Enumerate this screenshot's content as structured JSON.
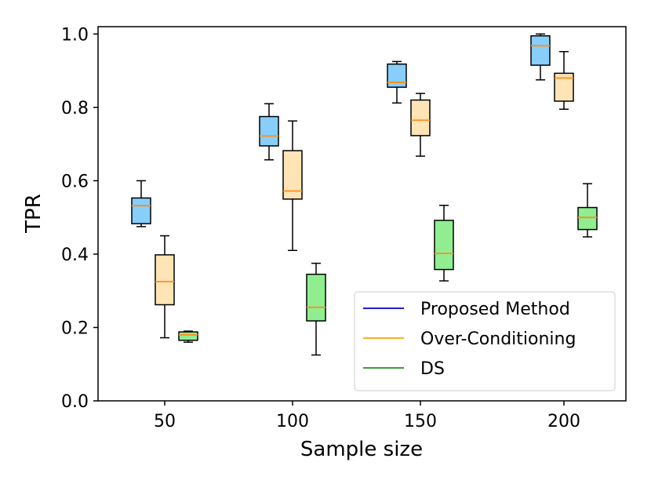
{
  "chart_data": {
    "type": "box",
    "xlabel": "Sample size",
    "ylabel": "TPR",
    "categories": [
      "50",
      "100",
      "150",
      "200"
    ],
    "ylim": [
      0.0,
      1.02
    ],
    "yticks": [
      "0.0",
      "0.2",
      "0.4",
      "0.6",
      "0.8",
      "1.0"
    ],
    "grid": false,
    "legend_position": "lower-right",
    "series": [
      {
        "name": "Proposed Method",
        "fill": "#87cefa",
        "line_color": "#0000cd",
        "boxes": [
          {
            "whislo": 0.475,
            "q1": 0.483,
            "med": 0.532,
            "q3": 0.553,
            "whishi": 0.6
          },
          {
            "whislo": 0.657,
            "q1": 0.695,
            "med": 0.722,
            "q3": 0.775,
            "whishi": 0.81
          },
          {
            "whislo": 0.812,
            "q1": 0.855,
            "med": 0.868,
            "q3": 0.918,
            "whishi": 0.925
          },
          {
            "whislo": 0.875,
            "q1": 0.915,
            "med": 0.968,
            "q3": 0.995,
            "whishi": 1.0
          }
        ]
      },
      {
        "name": "Over-Conditioning",
        "fill": "#ffe4b5",
        "line_color": "#ffa500",
        "boxes": [
          {
            "whislo": 0.172,
            "q1": 0.262,
            "med": 0.325,
            "q3": 0.398,
            "whishi": 0.45
          },
          {
            "whislo": 0.41,
            "q1": 0.55,
            "med": 0.572,
            "q3": 0.682,
            "whishi": 0.763
          },
          {
            "whislo": 0.667,
            "q1": 0.723,
            "med": 0.765,
            "q3": 0.82,
            "whishi": 0.838
          },
          {
            "whislo": 0.795,
            "q1": 0.817,
            "med": 0.88,
            "q3": 0.893,
            "whishi": 0.952
          }
        ]
      },
      {
        "name": "DS",
        "fill": "#90ee90",
        "line_color": "#228b22",
        "boxes": [
          {
            "whislo": 0.16,
            "q1": 0.165,
            "med": 0.18,
            "q3": 0.188,
            "whishi": 0.19
          },
          {
            "whislo": 0.125,
            "q1": 0.218,
            "med": 0.255,
            "q3": 0.345,
            "whishi": 0.375
          },
          {
            "whislo": 0.327,
            "q1": 0.358,
            "med": 0.402,
            "q3": 0.492,
            "whishi": 0.533
          },
          {
            "whislo": 0.447,
            "q1": 0.467,
            "med": 0.5,
            "q3": 0.527,
            "whishi": 0.592
          }
        ]
      }
    ],
    "median_color": "#ff8c1a"
  }
}
